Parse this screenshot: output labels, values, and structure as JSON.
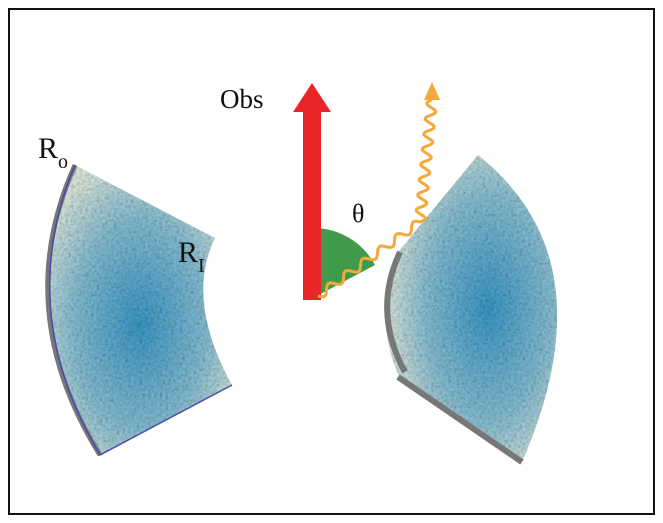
{
  "labels": {
    "observer": "Obs",
    "angle": "θ",
    "outer_radius": {
      "symbol": "R",
      "subscript": "o"
    },
    "inner_radius": {
      "symbol": "R",
      "subscript": "I"
    }
  }
}
